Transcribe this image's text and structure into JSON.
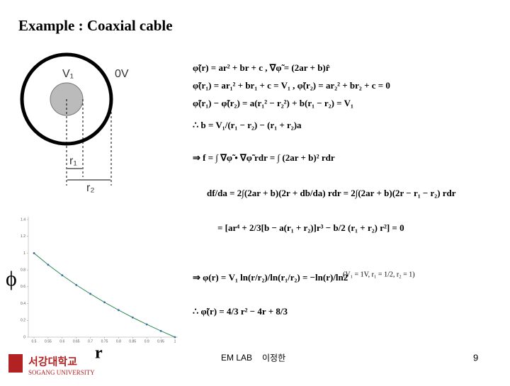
{
  "title": "Example : Coaxial cable",
  "diagram": {
    "labels": [
      "V₁",
      "0V",
      "r₁",
      "r₂"
    ]
  },
  "equations": [
    "φ̃(r) = ar² + br + c ,   ∇φ̃ = (2ar + b)r̂",
    "φ̃(r₁) = ar₁² + br₁ + c = V₁ ,   φ̃(r₂) = ar₂² + br₂ + c = 0",
    "φ̃(r₁) − φ̃(r₂) = a(r₁² − r₂²) + b(r₁ − r₂) = V₁",
    "∴ b = V₁/(r₁ − r₂) − (r₁ + r₂)a",
    "⇒ f = ∫ ∇φ̃ • ∇φ̃ rdr = ∫ (2ar + b)² rdr",
    "df/da = 2∫(2ar + b)(2r + db/da) rdr = 2∫(2ar + b)(2r − r₁ − r₂) rdr",
    "= [ar⁴ + 2/3[b − a(r₁ + r₂)]r³ − b/2 (r₁ + r₂) r²] = 0",
    "⇒ φ(r) = V₁ ln(r/r₂)/ln(r₁/r₂) = −ln(r)/ln2",
    "∴ φ̃(r) = 4/3 r² − 4r + 8/3"
  ],
  "condition": "(V₁ = 1V, r₁ = 1/2, r₂ = 1)",
  "chart_data": {
    "type": "line",
    "x": [
      0.5,
      0.55,
      0.6,
      0.65,
      0.7,
      0.75,
      0.8,
      0.85,
      0.9,
      0.95,
      1
    ],
    "values": [
      1.0,
      0.862,
      0.737,
      0.621,
      0.515,
      0.415,
      0.322,
      0.234,
      0.152,
      0.074,
      0
    ],
    "color": "#2e8b57",
    "marker_color": "#4169b0",
    "xlim": [
      0.5,
      1
    ],
    "ylim": [
      0,
      1.4
    ],
    "xticks": [
      0.5,
      0.55,
      0.6,
      0.65,
      0.7,
      0.75,
      0.8,
      0.85,
      0.9,
      0.95,
      1
    ],
    "yticks": [
      0,
      0.2,
      0.4,
      0.6,
      0.8,
      1,
      1.2,
      1.4
    ],
    "ylabel": "ϕ",
    "xlabel": "r"
  },
  "footer": {
    "lab": "EM LAB",
    "author": "이정한",
    "page": "9",
    "logo": "서강대학교",
    "university": "SOGANG UNIVERSITY"
  }
}
